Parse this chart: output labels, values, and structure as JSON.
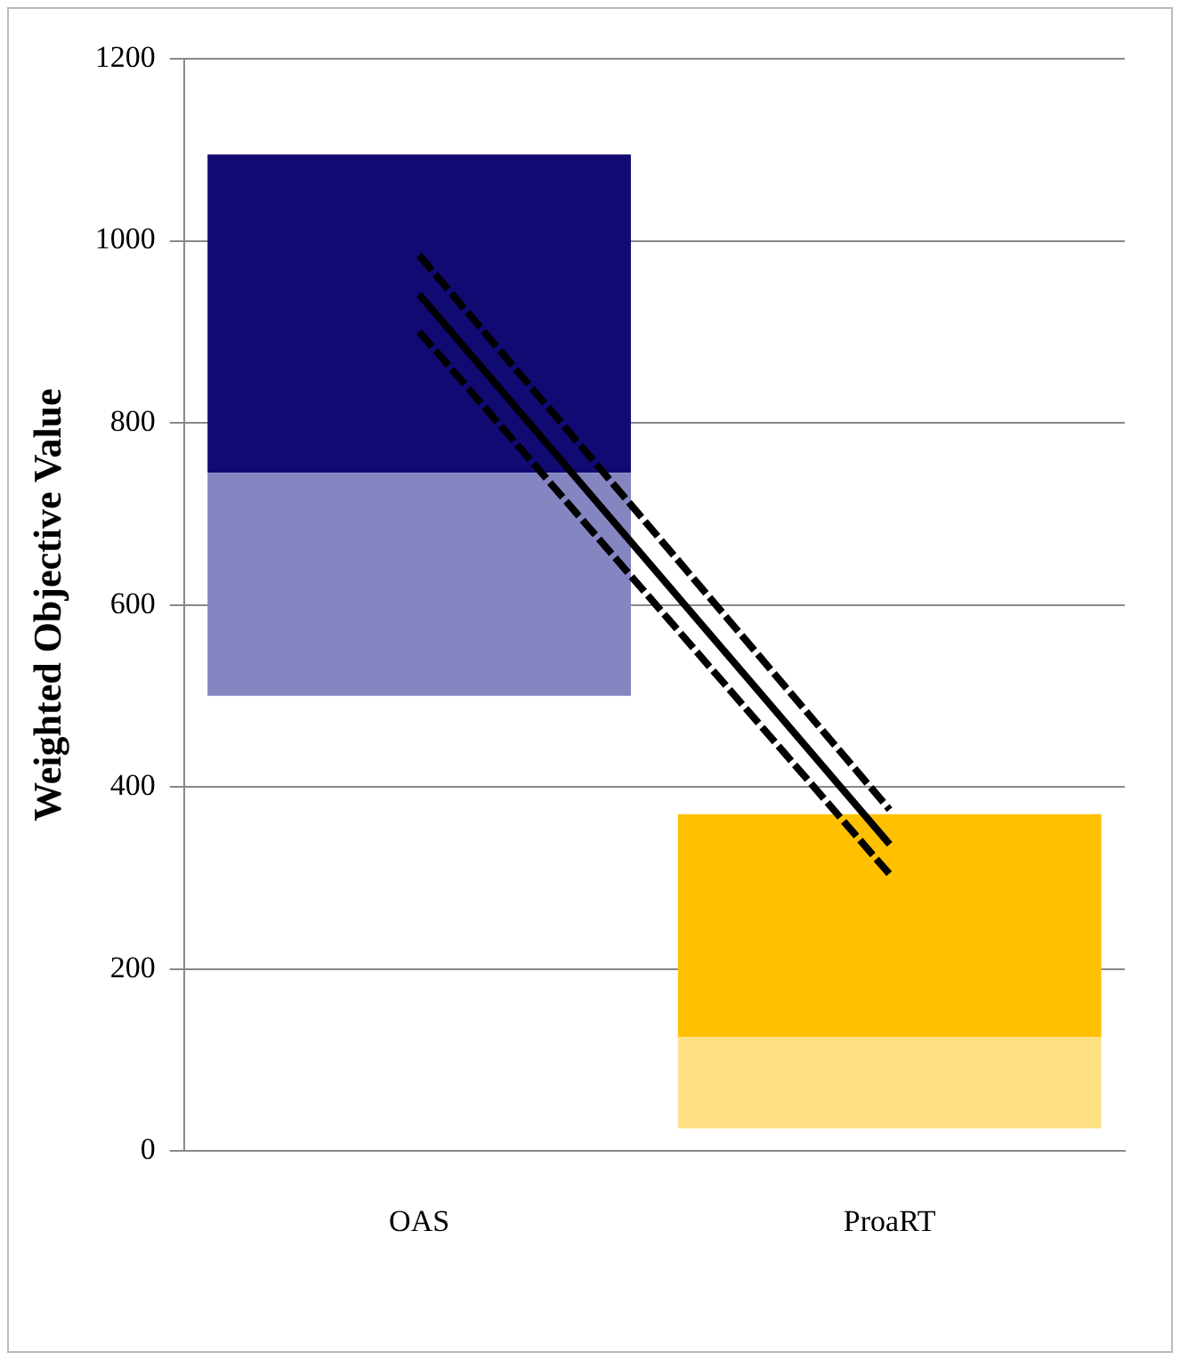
{
  "chart_data": {
    "type": "bar",
    "ylabel": "Weighted Objective Value",
    "categories": [
      "OAS",
      "ProaRT"
    ],
    "series": [
      {
        "colors": [
          "#8585c2",
          "#ffe085"
        ],
        "base": [
          500,
          25
        ],
        "values": [
          245,
          100
        ]
      },
      {
        "colors": [
          "#120a73",
          "#ffc000"
        ],
        "base": [
          745,
          125
        ],
        "values": [
          350,
          245
        ]
      },
      {
        "type": "line",
        "color": "#000000",
        "values": [
          984,
          375
        ],
        "line_style": "dashed",
        "marker": "none"
      },
      {
        "type": "line",
        "color": "#000000",
        "values": [
          941,
          337
        ],
        "line_style": "solid",
        "marker": "none"
      },
      {
        "type": "line",
        "color": "#000000",
        "values": [
          900,
          304
        ],
        "line_style": "dashed",
        "marker": "none"
      }
    ],
    "ylim": [
      0,
      1200
    ],
    "yticks": [
      0,
      200,
      400,
      600,
      800,
      1000,
      1200
    ],
    "grid": "y",
    "legend": false
  }
}
